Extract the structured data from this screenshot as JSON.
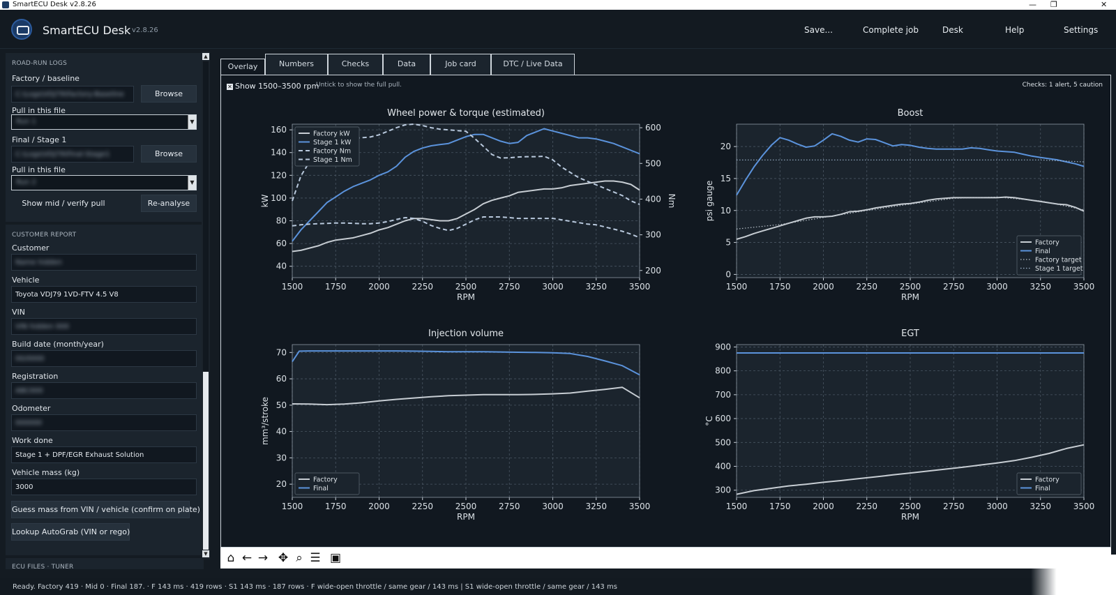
{
  "window": {
    "title": "SmartECU Desk  v2.8.26",
    "app_name": "SmartECU Desk",
    "version": "v2.8.26"
  },
  "menu": [
    "Save...",
    "Complete job",
    "Desk",
    "Help",
    "Settings"
  ],
  "sidebar": {
    "road_run": {
      "header": "ROAD-RUN LOGS",
      "factory_label": "Factory / baseline",
      "factory_path": "C:\\Logs\\VDJ79\\Factory-Baseline",
      "browse1": "Browse",
      "pull1_label": "Pull in this file",
      "pull1_value": "Run 1",
      "final_label": "Final / Stage 1",
      "final_path": "C:\\Logs\\VDJ79\\Final-Stage1",
      "browse2": "Browse",
      "pull2_label": "Pull in this file",
      "pull2_value": "Run 2",
      "show_mid": "Show mid / verify pull",
      "reanalyse": "Re-analyse"
    },
    "customer": {
      "header": "CUSTOMER REPORT",
      "customer_label": "Customer",
      "customer_value": "Name hidden",
      "vehicle_label": "Vehicle",
      "vehicle_value": "Toyota VDJ79 1VD-FTV 4.5 V8",
      "vin_label": "VIN",
      "vin_value": "VIN hidden 000",
      "build_label": "Build date (month/year)",
      "build_value": "00/0000",
      "rego_label": "Registration",
      "rego_value": "ABC000",
      "odo_label": "Odometer",
      "odo_value": "000000",
      "work_label": "Work done",
      "work_value": "Stage 1 + DPF/EGR Exhaust Solution",
      "mass_label": "Vehicle mass (kg)",
      "mass_value": "3000",
      "guess_button": "Guess mass from VIN / vehicle (confirm on plate)",
      "lookup_button": "Lookup AutoGrab (VIN or rego)"
    },
    "ecu_header": "ECU FILES · TUNER"
  },
  "tabs": [
    "Overlay",
    "Numbers",
    "Checks",
    "Data",
    "Job card",
    "DTC / Live Data"
  ],
  "overlay": {
    "show_range": "Show 1500–3500 rpm",
    "hint": "Untick to show the full pull.",
    "checks_summary": "Checks: 1 alert, 5 caution"
  },
  "status": "Ready.  Factory 419  ·  Mid 0  ·  Final 187.  ·  F 143 ms · 419 rows  ·  S1 143 ms · 187 rows  ·  F wide-open throttle / same gear / 143 ms  |  S1 wide-open throttle / same gear / 143 ms",
  "colors": {
    "factory": "#c7cdd3",
    "final": "#5b93dc",
    "grid": "#4a5663",
    "plot_bg": "#1b242d"
  },
  "toolbar_icons": [
    "home-icon",
    "back-arrow-icon",
    "forward-arrow-icon",
    "pan-icon",
    "zoom-icon",
    "configure-icon",
    "save-icon"
  ],
  "chart_data": [
    {
      "type": "line",
      "title": "Wheel power & torque (estimated)",
      "xlabel": "RPM",
      "ylabel": "kW",
      "y2label": "Nm",
      "xlim": [
        1500,
        3500
      ],
      "ylim": [
        30,
        165
      ],
      "y2lim": [
        180,
        610
      ],
      "xticks": [
        1500,
        1750,
        2000,
        2250,
        2500,
        2750,
        3000,
        3250,
        3500
      ],
      "yticks": [
        40,
        60,
        80,
        100,
        120,
        140,
        160
      ],
      "y2ticks": [
        200,
        300,
        400,
        500,
        600
      ],
      "legend": "top-left",
      "series": [
        {
          "name": "Factory kW",
          "color": "#c7cdd3",
          "dash": "solid",
          "axis": "y",
          "x": [
            1500,
            1550,
            1600,
            1650,
            1700,
            1750,
            1800,
            1850,
            1900,
            1950,
            2000,
            2050,
            2100,
            2150,
            2200,
            2250,
            2300,
            2350,
            2400,
            2450,
            2500,
            2550,
            2600,
            2650,
            2700,
            2750,
            2800,
            2850,
            2900,
            2950,
            3000,
            3050,
            3100,
            3150,
            3200,
            3250,
            3300,
            3350,
            3400,
            3450,
            3500
          ],
          "y": [
            53,
            54,
            56,
            58,
            61,
            63,
            64,
            65,
            67,
            69,
            72,
            74,
            77,
            80,
            82,
            82,
            81,
            80,
            80,
            82,
            86,
            90,
            95,
            98,
            100,
            102,
            105,
            106,
            107,
            108,
            108,
            109,
            111,
            112,
            113,
            114,
            115,
            115,
            114,
            112,
            107
          ]
        },
        {
          "name": "Stage 1 kW",
          "color": "#5b93dc",
          "dash": "solid",
          "axis": "y",
          "x": [
            1500,
            1550,
            1600,
            1650,
            1700,
            1750,
            1800,
            1850,
            1900,
            1950,
            2000,
            2050,
            2100,
            2150,
            2200,
            2250,
            2300,
            2350,
            2400,
            2450,
            2500,
            2550,
            2600,
            2650,
            2700,
            2750,
            2800,
            2850,
            2900,
            2950,
            3000,
            3050,
            3100,
            3150,
            3200,
            3250,
            3300,
            3350,
            3400,
            3450,
            3500
          ],
          "y": [
            62,
            72,
            80,
            88,
            96,
            101,
            106,
            110,
            113,
            116,
            120,
            123,
            128,
            136,
            141,
            144,
            146,
            147,
            148,
            151,
            154,
            156,
            156,
            153,
            150,
            148,
            149,
            155,
            158,
            161,
            159,
            157,
            155,
            153,
            153,
            152,
            150,
            148,
            145,
            142,
            139
          ]
        },
        {
          "name": "Factory Nm",
          "color": "#b9c9dd",
          "dash": "dashed",
          "axis": "y2",
          "x": [
            1500,
            1550,
            1600,
            1650,
            1700,
            1750,
            1800,
            1850,
            1900,
            1950,
            2000,
            2050,
            2100,
            2150,
            2200,
            2250,
            2300,
            2350,
            2400,
            2450,
            2500,
            2550,
            2600,
            2650,
            2700,
            2750,
            2800,
            2850,
            2900,
            2950,
            3000,
            3050,
            3100,
            3150,
            3200,
            3250,
            3300,
            3350,
            3400,
            3450,
            3500
          ],
          "y": [
            325,
            328,
            330,
            331,
            332,
            333,
            333,
            332,
            331,
            331,
            333,
            337,
            343,
            348,
            346,
            338,
            326,
            318,
            312,
            318,
            330,
            342,
            350,
            350,
            350,
            348,
            346,
            346,
            346,
            346,
            346,
            342,
            338,
            334,
            330,
            328,
            322,
            316,
            310,
            302,
            292
          ]
        },
        {
          "name": "Stage 1 Nm",
          "color": "#b9c9dd",
          "dash": "dashed",
          "axis": "y2",
          "x": [
            1500,
            1550,
            1600,
            1650,
            1700,
            1750,
            1800,
            1850,
            1900,
            1950,
            2000,
            2050,
            2100,
            2150,
            2200,
            2250,
            2300,
            2350,
            2400,
            2450,
            2500,
            2550,
            2600,
            2650,
            2700,
            2750,
            2800,
            2850,
            2900,
            2950,
            3000,
            3050,
            3100,
            3150,
            3200,
            3250,
            3300,
            3350,
            3400,
            3450,
            3500
          ],
          "y": [
            395,
            465,
            505,
            535,
            555,
            565,
            570,
            570,
            572,
            574,
            580,
            590,
            600,
            608,
            610,
            606,
            600,
            596,
            594,
            592,
            590,
            570,
            548,
            525,
            515,
            516,
            518,
            519,
            519,
            520,
            510,
            490,
            475,
            460,
            450,
            440,
            430,
            420,
            410,
            395,
            385
          ]
        }
      ]
    },
    {
      "type": "line",
      "title": "Boost",
      "xlabel": "RPM",
      "ylabel": "psi gauge",
      "xlim": [
        1500,
        3500
      ],
      "ylim": [
        -0.5,
        23.5
      ],
      "xticks": [
        1500,
        1750,
        2000,
        2250,
        2500,
        2750,
        3000,
        3250,
        3500
      ],
      "yticks": [
        0,
        5,
        10,
        15,
        20
      ],
      "legend": "bottom-right",
      "series": [
        {
          "name": "Factory",
          "color": "#c7cdd3",
          "dash": "solid",
          "x": [
            1500,
            1550,
            1600,
            1650,
            1700,
            1750,
            1800,
            1850,
            1900,
            1950,
            2000,
            2050,
            2100,
            2150,
            2200,
            2250,
            2300,
            2350,
            2400,
            2450,
            2500,
            2550,
            2600,
            2650,
            2700,
            2750,
            2800,
            2850,
            2900,
            2950,
            3000,
            3050,
            3100,
            3150,
            3200,
            3250,
            3300,
            3350,
            3400,
            3450,
            3500
          ],
          "y": [
            5.5,
            5.9,
            6.4,
            6.8,
            7.2,
            7.6,
            8.0,
            8.4,
            8.8,
            9.0,
            9.0,
            9.1,
            9.4,
            9.8,
            9.9,
            10.1,
            10.4,
            10.6,
            10.8,
            11.0,
            11.1,
            11.3,
            11.6,
            11.8,
            11.9,
            12.0,
            12.0,
            12.0,
            12.0,
            12.0,
            12.0,
            12.1,
            12.0,
            11.8,
            11.6,
            11.4,
            11.2,
            11.0,
            10.9,
            10.5,
            9.9
          ]
        },
        {
          "name": "Final",
          "color": "#5b93dc",
          "dash": "solid",
          "x": [
            1500,
            1550,
            1600,
            1650,
            1700,
            1750,
            1800,
            1850,
            1900,
            1950,
            2000,
            2050,
            2100,
            2150,
            2200,
            2250,
            2300,
            2350,
            2400,
            2450,
            2500,
            2550,
            2600,
            2650,
            2700,
            2750,
            2800,
            2850,
            2900,
            2950,
            3000,
            3050,
            3100,
            3150,
            3200,
            3250,
            3300,
            3350,
            3400,
            3450,
            3500
          ],
          "y": [
            12.4,
            14.7,
            16.8,
            18.6,
            20.2,
            21.4,
            21.0,
            20.4,
            19.9,
            20.1,
            21.0,
            22.0,
            21.6,
            21.0,
            20.7,
            21.2,
            21.1,
            20.6,
            20.1,
            20.3,
            20.2,
            19.9,
            19.7,
            19.6,
            19.6,
            19.6,
            19.6,
            19.8,
            19.7,
            19.5,
            19.3,
            19.2,
            19.1,
            18.8,
            18.5,
            18.3,
            18.1,
            17.9,
            17.6,
            17.3,
            16.9
          ]
        },
        {
          "name": "Factory target",
          "color": "#b9c2cb",
          "dash": "dotted",
          "x": [
            1500,
            1750,
            2000,
            2250,
            2500,
            2750,
            3000,
            3250,
            3500
          ],
          "y": [
            7.1,
            7.8,
            8.9,
            10.0,
            11.0,
            11.9,
            12.1,
            11.5,
            10.1
          ]
        },
        {
          "name": "Stage 1 target",
          "color": "#9fb4cc",
          "dash": "dotted",
          "x": [
            1500,
            1750,
            2000,
            2250,
            2500,
            2750,
            3000,
            3250,
            3500
          ],
          "y": [
            17.9,
            17.9,
            17.9,
            17.9,
            17.9,
            17.9,
            17.9,
            17.9,
            17.6
          ]
        }
      ]
    },
    {
      "type": "line",
      "title": "Injection volume",
      "xlabel": "RPM",
      "ylabel": "mm³/stroke",
      "xlim": [
        1500,
        3500
      ],
      "ylim": [
        15,
        73
      ],
      "xticks": [
        1500,
        1750,
        2000,
        2250,
        2500,
        2750,
        3000,
        3250,
        3500
      ],
      "yticks": [
        20,
        30,
        40,
        50,
        60,
        70
      ],
      "legend": "bottom-left",
      "series": [
        {
          "name": "Factory",
          "color": "#c7cdd3",
          "dash": "solid",
          "x": [
            1500,
            1600,
            1700,
            1800,
            1900,
            2000,
            2100,
            2200,
            2300,
            2400,
            2500,
            2600,
            2700,
            2800,
            2900,
            3000,
            3100,
            3200,
            3300,
            3400,
            3500
          ],
          "y": [
            50.5,
            50.4,
            50.2,
            50.4,
            50.9,
            51.6,
            52.2,
            52.7,
            53.2,
            53.6,
            53.8,
            54.0,
            54.0,
            54.0,
            54.1,
            54.3,
            54.6,
            55.3,
            56.0,
            56.8,
            52.8
          ]
        },
        {
          "name": "Final",
          "color": "#5b93dc",
          "dash": "solid",
          "x": [
            1500,
            1540,
            1600,
            1700,
            1800,
            1900,
            2000,
            2100,
            2200,
            2300,
            2400,
            2500,
            2600,
            2700,
            2800,
            2900,
            3000,
            3100,
            3200,
            3300,
            3400,
            3500
          ],
          "y": [
            66.5,
            70.5,
            70.6,
            70.6,
            70.6,
            70.6,
            70.6,
            70.6,
            70.5,
            70.4,
            70.3,
            70.3,
            70.3,
            70.2,
            70.1,
            70.0,
            69.9,
            69.6,
            68.5,
            66.8,
            65.0,
            61.5
          ]
        }
      ]
    },
    {
      "type": "line",
      "title": "EGT",
      "xlabel": "RPM",
      "ylabel": "°C",
      "xlim": [
        1500,
        3500
      ],
      "ylim": [
        270,
        910
      ],
      "xticks": [
        1500,
        1750,
        2000,
        2250,
        2500,
        2750,
        3000,
        3250,
        3500
      ],
      "yticks": [
        300,
        400,
        500,
        600,
        700,
        800,
        900
      ],
      "legend": "bottom-right",
      "series": [
        {
          "name": "Factory",
          "color": "#c7cdd3",
          "dash": "solid",
          "x": [
            1500,
            1600,
            1700,
            1800,
            1900,
            2000,
            2100,
            2200,
            2300,
            2400,
            2500,
            2600,
            2700,
            2800,
            2900,
            3000,
            3100,
            3200,
            3300,
            3400,
            3500
          ],
          "y": [
            283,
            298,
            308,
            318,
            325,
            333,
            340,
            348,
            356,
            364,
            372,
            380,
            388,
            396,
            405,
            414,
            424,
            438,
            454,
            475,
            490
          ]
        },
        {
          "name": "Final",
          "color": "#5b93dc",
          "dash": "solid",
          "x": [
            1500,
            3500
          ],
          "y": [
            875,
            875
          ]
        }
      ]
    }
  ]
}
